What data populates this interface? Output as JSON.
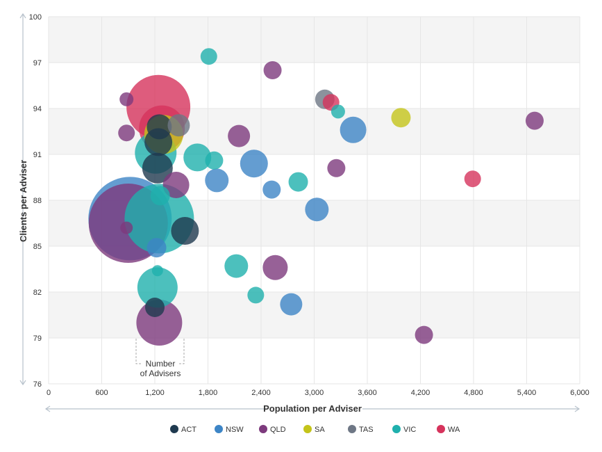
{
  "chart_data": {
    "type": "scatter",
    "subtype": "bubble",
    "xlabel": "Population per Adviser",
    "ylabel": "Clients per Adviser",
    "xlim": [
      0,
      6000
    ],
    "ylim": [
      76,
      100
    ],
    "x_ticks": [
      "0",
      "600",
      "1,200",
      "1,800",
      "2,400",
      "3,000",
      "3,600",
      "4,200",
      "4,800",
      "5,400",
      "6,000"
    ],
    "y_ticks": [
      "76",
      "79",
      "82",
      "85",
      "88",
      "91",
      "94",
      "97",
      "100"
    ],
    "x_tick_values": [
      0,
      600,
      1200,
      1800,
      2400,
      3000,
      3600,
      4200,
      4800,
      5400,
      6000
    ],
    "y_tick_values": [
      76,
      79,
      82,
      85,
      88,
      91,
      94,
      97,
      100
    ],
    "grid": true,
    "legend_position": "bottom",
    "annotation": {
      "line1": "Number",
      "line2": "of Advisers"
    },
    "size_unit": "relative",
    "series": [
      {
        "name": "ACT",
        "color": "#1f3a4f",
        "points": [
          {
            "x": 1250,
            "y": 92.8,
            "size": 18
          },
          {
            "x": 1240,
            "y": 91.8,
            "size": 20
          },
          {
            "x": 1230,
            "y": 90.1,
            "size": 22
          },
          {
            "x": 1540,
            "y": 86.0,
            "size": 20
          },
          {
            "x": 1200,
            "y": 81.0,
            "size": 14
          }
        ]
      },
      {
        "name": "NSW",
        "color": "#3d85c6",
        "points": [
          {
            "x": 920,
            "y": 86.8,
            "size": 60
          },
          {
            "x": 2320,
            "y": 90.4,
            "size": 20
          },
          {
            "x": 1900,
            "y": 89.3,
            "size": 17
          },
          {
            "x": 2520,
            "y": 88.7,
            "size": 13
          },
          {
            "x": 3030,
            "y": 87.4,
            "size": 17
          },
          {
            "x": 3440,
            "y": 92.6,
            "size": 19
          },
          {
            "x": 2740,
            "y": 81.2,
            "size": 16
          },
          {
            "x": 1220,
            "y": 84.9,
            "size": 14
          }
        ]
      },
      {
        "name": "QLD",
        "color": "#7d3a7d",
        "points": [
          {
            "x": 900,
            "y": 86.5,
            "size": 57
          },
          {
            "x": 1250,
            "y": 80.0,
            "size": 33
          },
          {
            "x": 1440,
            "y": 89.0,
            "size": 19
          },
          {
            "x": 2560,
            "y": 83.6,
            "size": 18
          },
          {
            "x": 2150,
            "y": 92.2,
            "size": 16
          },
          {
            "x": 3250,
            "y": 90.1,
            "size": 13
          },
          {
            "x": 2530,
            "y": 96.5,
            "size": 13
          },
          {
            "x": 5490,
            "y": 93.2,
            "size": 13
          },
          {
            "x": 4240,
            "y": 79.2,
            "size": 13
          },
          {
            "x": 880,
            "y": 92.4,
            "size": 12
          },
          {
            "x": 880,
            "y": 94.6,
            "size": 10
          },
          {
            "x": 880,
            "y": 86.2,
            "size": 9
          }
        ]
      },
      {
        "name": "SA",
        "color": "#c4c41a",
        "points": [
          {
            "x": 1300,
            "y": 92.3,
            "size": 28
          },
          {
            "x": 3980,
            "y": 93.4,
            "size": 14
          }
        ]
      },
      {
        "name": "TAS",
        "color": "#6e7785",
        "points": [
          {
            "x": 1470,
            "y": 92.9,
            "size": 16
          },
          {
            "x": 3120,
            "y": 94.6,
            "size": 14
          }
        ]
      },
      {
        "name": "VIC",
        "color": "#1fb0ad",
        "points": [
          {
            "x": 1250,
            "y": 86.8,
            "size": 50
          },
          {
            "x": 1210,
            "y": 91.1,
            "size": 30
          },
          {
            "x": 1230,
            "y": 82.3,
            "size": 29
          },
          {
            "x": 1680,
            "y": 90.8,
            "size": 20
          },
          {
            "x": 1870,
            "y": 90.6,
            "size": 13
          },
          {
            "x": 1810,
            "y": 97.4,
            "size": 12
          },
          {
            "x": 2120,
            "y": 83.7,
            "size": 17
          },
          {
            "x": 2340,
            "y": 81.8,
            "size": 12
          },
          {
            "x": 2820,
            "y": 89.2,
            "size": 14
          },
          {
            "x": 3270,
            "y": 93.8,
            "size": 10
          },
          {
            "x": 1230,
            "y": 83.4,
            "size": 8
          },
          {
            "x": 1260,
            "y": 88.3,
            "size": 14
          }
        ]
      },
      {
        "name": "WA",
        "color": "#d6335c",
        "points": [
          {
            "x": 1240,
            "y": 94.1,
            "size": 46
          },
          {
            "x": 1280,
            "y": 92.7,
            "size": 33
          },
          {
            "x": 3190,
            "y": 94.4,
            "size": 12
          },
          {
            "x": 4790,
            "y": 89.4,
            "size": 12
          }
        ]
      }
    ]
  }
}
